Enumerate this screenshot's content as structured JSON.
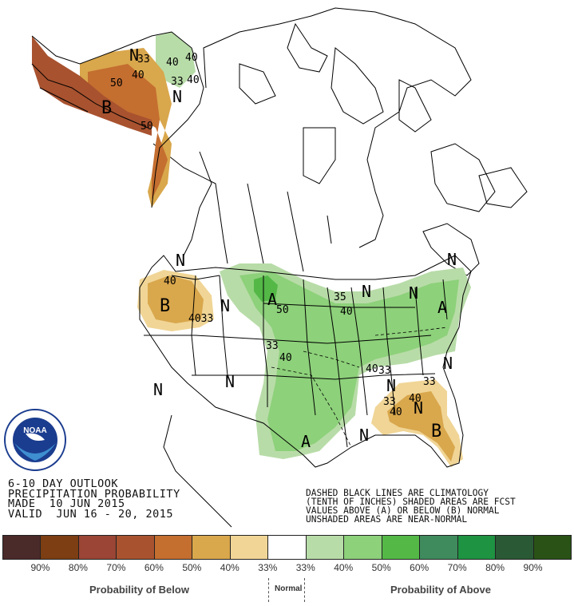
{
  "outlook": {
    "title": "6-10 DAY OUTLOOK",
    "subtitle": "PRECIPITATION PROBABILITY",
    "made": "MADE  10 JUN 2015",
    "valid": "VALID  JUN 16 - 20, 2015"
  },
  "note": {
    "line1": "DASHED BLACK LINES ARE CLIMATOLOGY",
    "line2": "(TENTH OF INCHES) SHADED AREAS ARE FCST",
    "line3": "VALUES ABOVE (A) OR BELOW (B) NORMAL",
    "line4": "UNSHADED AREAS ARE NEAR-NORMAL"
  },
  "logo": {
    "text": "NOAA",
    "ring_text": "NATIONAL OCEANIC AND ATMOSPHERIC ADMINISTRATION · U.S. DEPARTMENT OF COMMERCE"
  },
  "legend": {
    "colors": [
      "#4b2a2a",
      "#7c3e12",
      "#9a4535",
      "#a8522f",
      "#c46e30",
      "#d9a74c",
      "#f0d596",
      "#ffffff",
      "#b8dca8",
      "#8dd17a",
      "#54b847",
      "#3f8b5d",
      "#1e9342",
      "#2a5a35",
      "#2a5216"
    ],
    "labels": [
      "90%",
      "80%",
      "70%",
      "60%",
      "50%",
      "40%",
      "33%",
      "33%",
      "40%",
      "50%",
      "60%",
      "70%",
      "80%",
      "90%"
    ],
    "below_caption": "Probability of Below",
    "normal_caption": "Normal",
    "above_caption": "Probability of Above"
  },
  "map_labels": {
    "alaska_N1": "N",
    "alaska_N2": "N",
    "alaska_B": "B",
    "alaska_33a": "33",
    "alaska_40a": "40",
    "alaska_50a": "50",
    "alaska_50b": "50",
    "alaska_40b": "40",
    "alaska_40c": "40",
    "alaska_33b": "33",
    "alaska_40d": "40",
    "west_N1": "N",
    "west_40": "40",
    "west_B": "B",
    "west_4033": "4033",
    "west_N2": "N",
    "center_A1": "A",
    "center_50": "50",
    "center_33": "33",
    "center_40": "40",
    "center_N": "N",
    "sw_N": "N",
    "se_40_33": "40",
    "se_33": "33",
    "se_N1": "N",
    "se_N2": "N",
    "se_33b": "33",
    "se_33c": "33",
    "se_40": "40",
    "se_40b": "40",
    "se_B": "B",
    "se_N3": "N",
    "se_N4": "N",
    "gulf_A": "A",
    "ne_35": "35",
    "ne_N1": "N",
    "ne_40": "40",
    "ne_N2": "N",
    "ne_A": "A",
    "east_N": "N"
  }
}
